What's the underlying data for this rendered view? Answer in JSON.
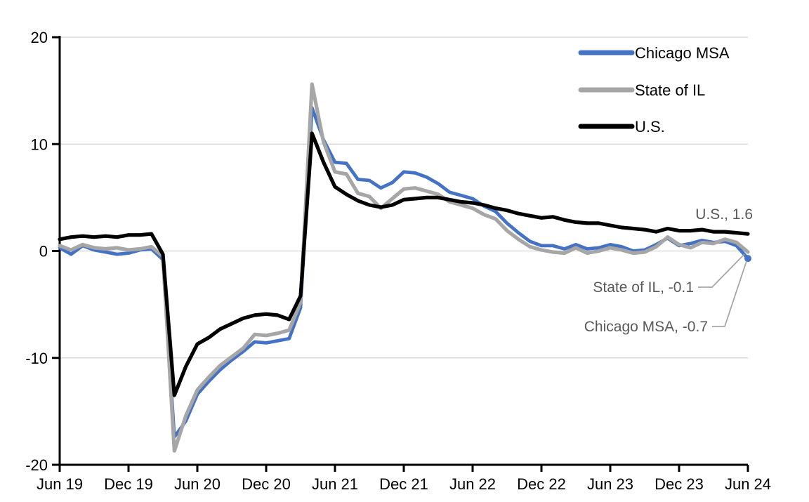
{
  "chart_data": {
    "type": "line",
    "title": "",
    "x_axis": {
      "start": "Jun 2019",
      "end": "Jun 2024",
      "interval": "monthly",
      "tick_labels": [
        "Jun 19",
        "Dec 19",
        "Jun 20",
        "Dec 20",
        "Jun 21",
        "Dec 21",
        "Jun 22",
        "Dec 22",
        "Jun 23",
        "Dec 23",
        "Jun 24"
      ]
    },
    "y_axis": {
      "min": -20,
      "max": 20,
      "tick_interval": 10,
      "tick_values": [
        20,
        10,
        0,
        -10,
        -20
      ],
      "tick_labels": [
        "20",
        "10",
        "0",
        "-10",
        "-20"
      ]
    },
    "grid": "horizontal",
    "legend_position": "top-right",
    "series": [
      {
        "name": "Chicago MSA",
        "color": "#4472C4",
        "last_value": -0.7,
        "values": [
          0.3,
          -0.3,
          0.5,
          0.1,
          -0.1,
          -0.3,
          -0.2,
          0.1,
          0.2,
          -0.8,
          -17.4,
          -15.9,
          -13.4,
          -12.2,
          -11.1,
          -10.2,
          -9.4,
          -8.5,
          -8.6,
          -8.4,
          -8.2,
          -5.3,
          13.4,
          10.4,
          8.3,
          8.2,
          6.7,
          6.6,
          5.9,
          6.4,
          7.4,
          7.3,
          6.9,
          6.3,
          5.5,
          5.2,
          4.9,
          4.2,
          3.7,
          2.6,
          1.7,
          0.9,
          0.5,
          0.5,
          0.2,
          0.6,
          0.2,
          0.3,
          0.6,
          0.4,
          0.0,
          0.1,
          0.6,
          1.2,
          0.5,
          0.7,
          1.0,
          0.8,
          0.9,
          0.5,
          -0.7
        ]
      },
      {
        "name": "State of IL",
        "color": "#A6A6A6",
        "last_value": -0.1,
        "values": [
          0.5,
          0.1,
          0.6,
          0.3,
          0.2,
          0.3,
          0.1,
          0.2,
          0.4,
          -0.5,
          -18.7,
          -15.4,
          -13.0,
          -11.8,
          -10.7,
          -9.9,
          -9.1,
          -7.8,
          -7.9,
          -7.7,
          -7.4,
          -4.8,
          15.6,
          10.2,
          7.4,
          7.2,
          5.4,
          5.1,
          4.0,
          4.9,
          5.8,
          5.9,
          5.6,
          5.3,
          4.6,
          4.3,
          4.0,
          3.4,
          3.0,
          1.9,
          1.1,
          0.4,
          0.1,
          -0.1,
          -0.2,
          0.3,
          -0.2,
          0.0,
          0.3,
          0.1,
          -0.2,
          -0.1,
          0.4,
          1.3,
          0.6,
          0.3,
          0.8,
          0.7,
          1.1,
          0.8,
          -0.1
        ]
      },
      {
        "name": "U.S.",
        "color": "#000000",
        "last_value": 1.6,
        "values": [
          1.1,
          1.3,
          1.4,
          1.3,
          1.4,
          1.3,
          1.5,
          1.5,
          1.6,
          -0.3,
          -13.5,
          -10.8,
          -8.7,
          -8.1,
          -7.3,
          -6.8,
          -6.3,
          -6.0,
          -5.9,
          -6.0,
          -6.4,
          -4.2,
          11.0,
          8.3,
          6.0,
          5.3,
          4.7,
          4.3,
          4.1,
          4.3,
          4.8,
          4.9,
          5.0,
          5.0,
          4.8,
          4.6,
          4.5,
          4.3,
          4.0,
          3.8,
          3.5,
          3.3,
          3.1,
          3.2,
          2.9,
          2.7,
          2.6,
          2.6,
          2.4,
          2.2,
          2.1,
          2.0,
          1.8,
          2.1,
          1.9,
          1.9,
          2.0,
          1.8,
          1.8,
          1.7,
          1.6
        ]
      }
    ],
    "annotations": [
      {
        "text": "U.S., 1.6",
        "series": "U.S.",
        "value": 1.6
      },
      {
        "text": "State of IL, -0.1",
        "series": "State of IL",
        "value": -0.1
      },
      {
        "text": "Chicago MSA, -0.7",
        "series": "Chicago MSA",
        "value": -0.7
      }
    ],
    "colors": {
      "gridline": "#D9D9D9",
      "axis": "#000000",
      "annotation_text": "#595959",
      "leader_line": "#A6A6A6",
      "background": "#FFFFFF"
    }
  }
}
